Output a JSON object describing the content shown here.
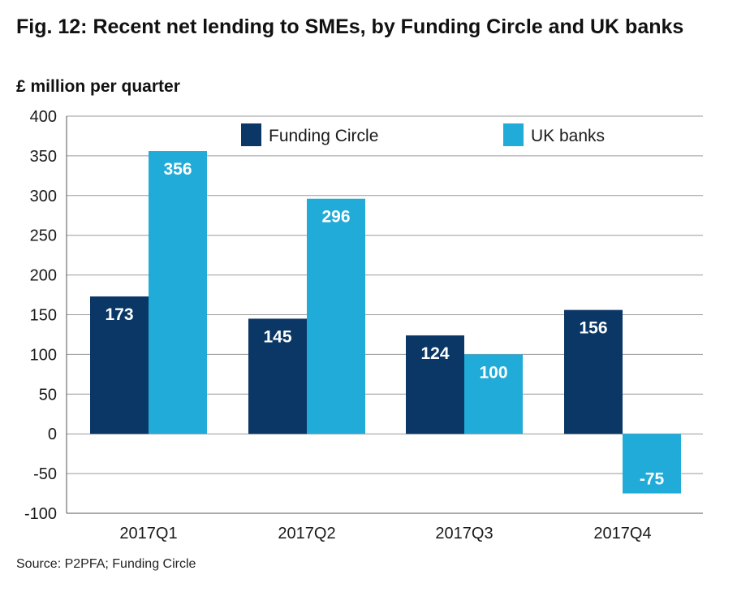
{
  "title": "Fig. 12: Recent net lending to SMEs, by Funding Circle and UK banks",
  "unit_label": "£ million per quarter",
  "source": "Source: P2PFA; Funding Circle",
  "colors": {
    "funding_circle": "#0a3766",
    "uk_banks": "#21abd8",
    "grid": "#9a9a9a"
  },
  "chart_data": {
    "type": "bar",
    "title": "Fig. 12: Recent net lending to SMEs, by Funding Circle and UK banks",
    "ylabel": "£ million per quarter",
    "xlabel": "",
    "categories": [
      "2017Q1",
      "2017Q2",
      "2017Q3",
      "2017Q4"
    ],
    "series": [
      {
        "name": "Funding Circle",
        "values": [
          173,
          145,
          124,
          156
        ]
      },
      {
        "name": "UK banks",
        "values": [
          356,
          296,
          100,
          -75
        ]
      }
    ],
    "ylim": [
      -100,
      400
    ],
    "yticks": [
      400,
      350,
      300,
      250,
      200,
      150,
      100,
      50,
      0,
      -50,
      -100
    ],
    "grid": true,
    "legend": "top",
    "data_labels": true
  }
}
